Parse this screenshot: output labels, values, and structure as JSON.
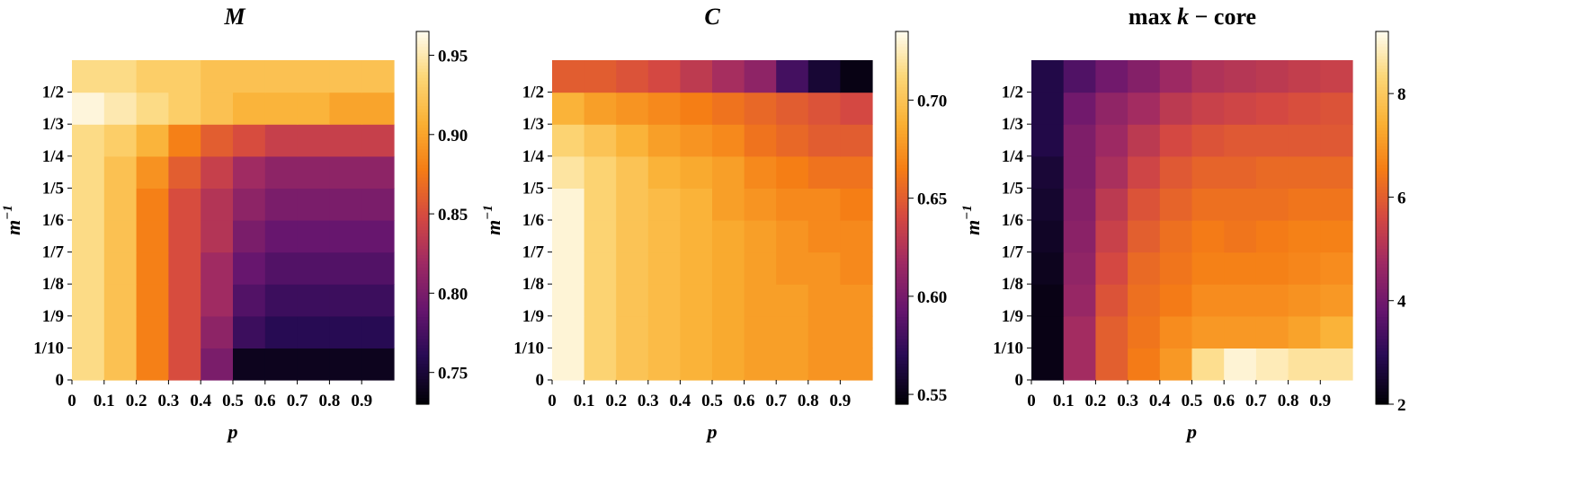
{
  "chart_data": [
    {
      "type": "heatmap",
      "title_parts": [
        {
          "text": "M",
          "italic": true
        }
      ],
      "xlabel": "p",
      "ylabel_base": "m",
      "ylabel_sup": "−1",
      "x_ticks": [
        "0",
        "0.1",
        "0.2",
        "0.3",
        "0.4",
        "0.5",
        "0.6",
        "0.7",
        "0.8",
        "0.9"
      ],
      "y_ticks": [
        "0",
        "1/10",
        "1/9",
        "1/8",
        "1/7",
        "1/6",
        "1/5",
        "1/4",
        "1/3",
        "1/2"
      ],
      "x": [
        0,
        0.1,
        0.2,
        0.3,
        0.4,
        0.5,
        0.6,
        0.7,
        0.8,
        0.9
      ],
      "y": [
        "0",
        "1/10",
        "1/9",
        "1/8",
        "1/7",
        "1/6",
        "1/5",
        "1/4",
        "1/3",
        "1/2"
      ],
      "values": [
        [
          0.94,
          0.92,
          0.88,
          0.85,
          0.8,
          0.74,
          0.74,
          0.74,
          0.74,
          0.74
        ],
        [
          0.94,
          0.92,
          0.88,
          0.85,
          0.81,
          0.77,
          0.76,
          0.76,
          0.76,
          0.76
        ],
        [
          0.94,
          0.92,
          0.88,
          0.85,
          0.82,
          0.78,
          0.77,
          0.77,
          0.77,
          0.77
        ],
        [
          0.94,
          0.92,
          0.88,
          0.85,
          0.82,
          0.79,
          0.78,
          0.78,
          0.78,
          0.78
        ],
        [
          0.94,
          0.92,
          0.88,
          0.85,
          0.83,
          0.8,
          0.79,
          0.79,
          0.79,
          0.79
        ],
        [
          0.94,
          0.92,
          0.88,
          0.85,
          0.83,
          0.81,
          0.8,
          0.8,
          0.8,
          0.8
        ],
        [
          0.94,
          0.92,
          0.89,
          0.86,
          0.84,
          0.82,
          0.81,
          0.81,
          0.81,
          0.81
        ],
        [
          0.94,
          0.93,
          0.91,
          0.88,
          0.86,
          0.85,
          0.84,
          0.84,
          0.84,
          0.84
        ],
        [
          0.96,
          0.95,
          0.94,
          0.93,
          0.92,
          0.91,
          0.91,
          0.91,
          0.9,
          0.9
        ],
        [
          0.94,
          0.94,
          0.93,
          0.93,
          0.92,
          0.92,
          0.92,
          0.92,
          0.92,
          0.92
        ]
      ],
      "colorbar": {
        "min": 0.73,
        "max": 0.965,
        "ticks": [
          0.75,
          0.8,
          0.85,
          0.9,
          0.95
        ],
        "tick_labels": [
          "0.75",
          "0.80",
          "0.85",
          "0.90",
          "0.95"
        ]
      },
      "grid": false
    },
    {
      "type": "heatmap",
      "title_parts": [
        {
          "text": "C",
          "italic": true
        }
      ],
      "xlabel": "p",
      "ylabel_base": "m",
      "ylabel_sup": "−1",
      "x_ticks": [
        "0",
        "0.1",
        "0.2",
        "0.3",
        "0.4",
        "0.5",
        "0.6",
        "0.7",
        "0.8",
        "0.9"
      ],
      "y_ticks": [
        "0",
        "1/10",
        "1/9",
        "1/8",
        "1/7",
        "1/6",
        "1/5",
        "1/4",
        "1/3",
        "1/2"
      ],
      "x": [
        0,
        0.1,
        0.2,
        0.3,
        0.4,
        0.5,
        0.6,
        0.7,
        0.8,
        0.9
      ],
      "y": [
        "0",
        "1/10",
        "1/9",
        "1/8",
        "1/7",
        "1/6",
        "1/5",
        "1/4",
        "1/3",
        "1/2"
      ],
      "values": [
        [
          0.73,
          0.71,
          0.7,
          0.695,
          0.69,
          0.685,
          0.68,
          0.68,
          0.675,
          0.675
        ],
        [
          0.73,
          0.71,
          0.7,
          0.695,
          0.69,
          0.685,
          0.68,
          0.68,
          0.675,
          0.675
        ],
        [
          0.73,
          0.71,
          0.7,
          0.695,
          0.69,
          0.685,
          0.68,
          0.68,
          0.675,
          0.675
        ],
        [
          0.73,
          0.71,
          0.7,
          0.695,
          0.69,
          0.685,
          0.68,
          0.675,
          0.675,
          0.67
        ],
        [
          0.73,
          0.71,
          0.7,
          0.695,
          0.69,
          0.685,
          0.68,
          0.675,
          0.67,
          0.67
        ],
        [
          0.73,
          0.71,
          0.7,
          0.695,
          0.69,
          0.68,
          0.675,
          0.67,
          0.67,
          0.665
        ],
        [
          0.72,
          0.71,
          0.7,
          0.69,
          0.685,
          0.68,
          0.67,
          0.665,
          0.66,
          0.66
        ],
        [
          0.71,
          0.7,
          0.69,
          0.68,
          0.675,
          0.67,
          0.66,
          0.655,
          0.65,
          0.65
        ],
        [
          0.69,
          0.68,
          0.675,
          0.67,
          0.665,
          0.66,
          0.655,
          0.65,
          0.645,
          0.64
        ],
        [
          0.65,
          0.65,
          0.645,
          0.64,
          0.63,
          0.62,
          0.61,
          0.58,
          0.56,
          0.55
        ]
      ],
      "colorbar": {
        "min": 0.545,
        "max": 0.735,
        "ticks": [
          0.55,
          0.6,
          0.65,
          0.7
        ],
        "tick_labels": [
          "0.55",
          "0.60",
          "0.65",
          "0.70"
        ]
      },
      "grid": false
    },
    {
      "type": "heatmap",
      "title_parts": [
        {
          "text": "max ",
          "italic": false
        },
        {
          "text": "k",
          "italic": true
        },
        {
          "text": " − core",
          "italic": false
        }
      ],
      "xlabel": "p",
      "ylabel_base": "m",
      "ylabel_sup": "−1",
      "x_ticks": [
        "0",
        "0.1",
        "0.2",
        "0.3",
        "0.4",
        "0.5",
        "0.6",
        "0.7",
        "0.8",
        "0.9"
      ],
      "y_ticks": [
        "0",
        "1/10",
        "1/9",
        "1/8",
        "1/7",
        "1/6",
        "1/5",
        "1/4",
        "1/3",
        "1/2"
      ],
      "x": [
        0,
        0.1,
        0.2,
        0.3,
        0.4,
        0.5,
        0.6,
        0.7,
        0.8,
        0.9
      ],
      "y": [
        "0",
        "1/10",
        "1/9",
        "1/8",
        "1/7",
        "1/6",
        "1/5",
        "1/4",
        "1/3",
        "1/2"
      ],
      "values": [
        [
          2.2,
          4.8,
          6.0,
          6.5,
          7.0,
          8.5,
          9.0,
          8.8,
          8.6,
          8.6
        ],
        [
          2.2,
          4.8,
          6.0,
          6.4,
          6.8,
          7.0,
          7.0,
          7.0,
          7.2,
          7.5
        ],
        [
          2.2,
          4.6,
          5.8,
          6.3,
          6.5,
          6.8,
          6.8,
          6.8,
          6.9,
          7.0
        ],
        [
          2.3,
          4.5,
          5.6,
          6.2,
          6.4,
          6.6,
          6.6,
          6.6,
          6.7,
          6.8
        ],
        [
          2.4,
          4.4,
          5.4,
          6.0,
          6.3,
          6.5,
          6.4,
          6.5,
          6.6,
          6.6
        ],
        [
          2.5,
          4.3,
          5.2,
          5.8,
          6.1,
          6.3,
          6.3,
          6.3,
          6.4,
          6.4
        ],
        [
          2.6,
          4.2,
          4.9,
          5.5,
          5.9,
          6.1,
          6.1,
          6.2,
          6.2,
          6.2
        ],
        [
          2.8,
          4.2,
          4.7,
          5.2,
          5.6,
          5.8,
          5.9,
          5.9,
          5.9,
          5.9
        ],
        [
          2.8,
          4.0,
          4.5,
          4.8,
          5.2,
          5.4,
          5.5,
          5.6,
          5.7,
          5.8
        ],
        [
          2.8,
          3.5,
          4.0,
          4.3,
          4.7,
          5.0,
          5.1,
          5.2,
          5.3,
          5.4
        ]
      ],
      "colorbar": {
        "min": 2,
        "max": 9.2,
        "ticks": [
          2,
          4,
          6,
          8
        ],
        "tick_labels": [
          "2",
          "4",
          "6",
          "8"
        ]
      },
      "grid": false
    }
  ]
}
